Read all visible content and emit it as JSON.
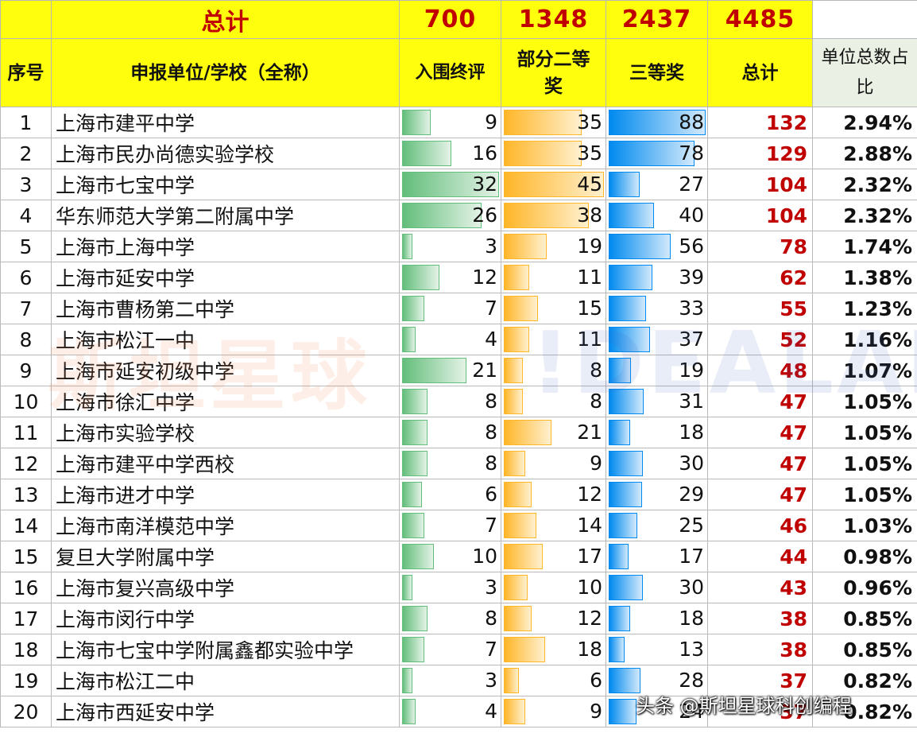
{
  "totals": {
    "label": "总计",
    "finalists": "700",
    "second": "1348",
    "third": "2437",
    "total": "4485"
  },
  "header": {
    "seq": "序号",
    "school": "申报单位/学校（全称）",
    "finalists": "入围终评",
    "second": "部分二等奖",
    "third": "三等奖",
    "total": "总计",
    "ratio": "单位总数占比"
  },
  "colors": {
    "header_bg": "#ffff0d",
    "total_text": "#c00000",
    "finalists_bar": "#63be7b",
    "second_bar": "#ffb628",
    "third_bar": "#008aef"
  },
  "bar_max": {
    "finalists": 32,
    "second": 45,
    "third": 88
  },
  "rows": [
    {
      "seq": "1",
      "school": "上海市建平中学",
      "finalists": "9",
      "second": "35",
      "third": "88",
      "total": "132",
      "ratio": "2.94%"
    },
    {
      "seq": "2",
      "school": "上海市民办尚德实验学校",
      "finalists": "16",
      "second": "35",
      "third": "78",
      "total": "129",
      "ratio": "2.88%"
    },
    {
      "seq": "3",
      "school": "上海市七宝中学",
      "finalists": "32",
      "second": "45",
      "third": "27",
      "total": "104",
      "ratio": "2.32%"
    },
    {
      "seq": "4",
      "school": "华东师范大学第二附属中学",
      "finalists": "26",
      "second": "38",
      "third": "40",
      "total": "104",
      "ratio": "2.32%"
    },
    {
      "seq": "5",
      "school": "上海市上海中学",
      "finalists": "3",
      "second": "19",
      "third": "56",
      "total": "78",
      "ratio": "1.74%"
    },
    {
      "seq": "6",
      "school": "上海市延安中学",
      "finalists": "12",
      "second": "11",
      "third": "39",
      "total": "62",
      "ratio": "1.38%"
    },
    {
      "seq": "7",
      "school": "上海市曹杨第二中学",
      "finalists": "7",
      "second": "15",
      "third": "33",
      "total": "55",
      "ratio": "1.23%"
    },
    {
      "seq": "8",
      "school": "上海市松江一中",
      "finalists": "4",
      "second": "11",
      "third": "37",
      "total": "52",
      "ratio": "1.16%"
    },
    {
      "seq": "9",
      "school": "上海市延安初级中学",
      "finalists": "21",
      "second": "8",
      "third": "19",
      "total": "48",
      "ratio": "1.07%"
    },
    {
      "seq": "10",
      "school": "上海市徐汇中学",
      "finalists": "8",
      "second": "8",
      "third": "31",
      "total": "47",
      "ratio": "1.05%"
    },
    {
      "seq": "11",
      "school": "上海市实验学校",
      "finalists": "8",
      "second": "21",
      "third": "18",
      "total": "47",
      "ratio": "1.05%"
    },
    {
      "seq": "12",
      "school": "上海市建平中学西校",
      "finalists": "8",
      "second": "9",
      "third": "30",
      "total": "47",
      "ratio": "1.05%"
    },
    {
      "seq": "13",
      "school": "上海市进才中学",
      "finalists": "6",
      "second": "12",
      "third": "29",
      "total": "47",
      "ratio": "1.05%"
    },
    {
      "seq": "14",
      "school": "上海市南洋模范中学",
      "finalists": "7",
      "second": "14",
      "third": "25",
      "total": "46",
      "ratio": "1.03%"
    },
    {
      "seq": "15",
      "school": "复旦大学附属中学",
      "finalists": "10",
      "second": "17",
      "third": "17",
      "total": "44",
      "ratio": "0.98%"
    },
    {
      "seq": "16",
      "school": "上海市复兴高级中学",
      "finalists": "3",
      "second": "10",
      "third": "30",
      "total": "43",
      "ratio": "0.96%"
    },
    {
      "seq": "17",
      "school": "上海市闵行中学",
      "finalists": "8",
      "second": "12",
      "third": "18",
      "total": "38",
      "ratio": "0.85%"
    },
    {
      "seq": "18",
      "school": "上海市七宝中学附属鑫都实验中学",
      "finalists": "7",
      "second": "18",
      "third": "13",
      "total": "38",
      "ratio": "0.85%"
    },
    {
      "seq": "19",
      "school": "上海市松江二中",
      "finalists": "3",
      "second": "6",
      "third": "28",
      "total": "37",
      "ratio": "0.82%"
    },
    {
      "seq": "20",
      "school": "上海市西延安中学",
      "finalists": "4",
      "second": "9",
      "third": "24",
      "total": "37",
      "ratio": "0.82%"
    }
  ],
  "watermark": {
    "text": "斯坦星球",
    "logo": "!DEALAB"
  },
  "credit": "头条 @斯坦星球科创编程"
}
